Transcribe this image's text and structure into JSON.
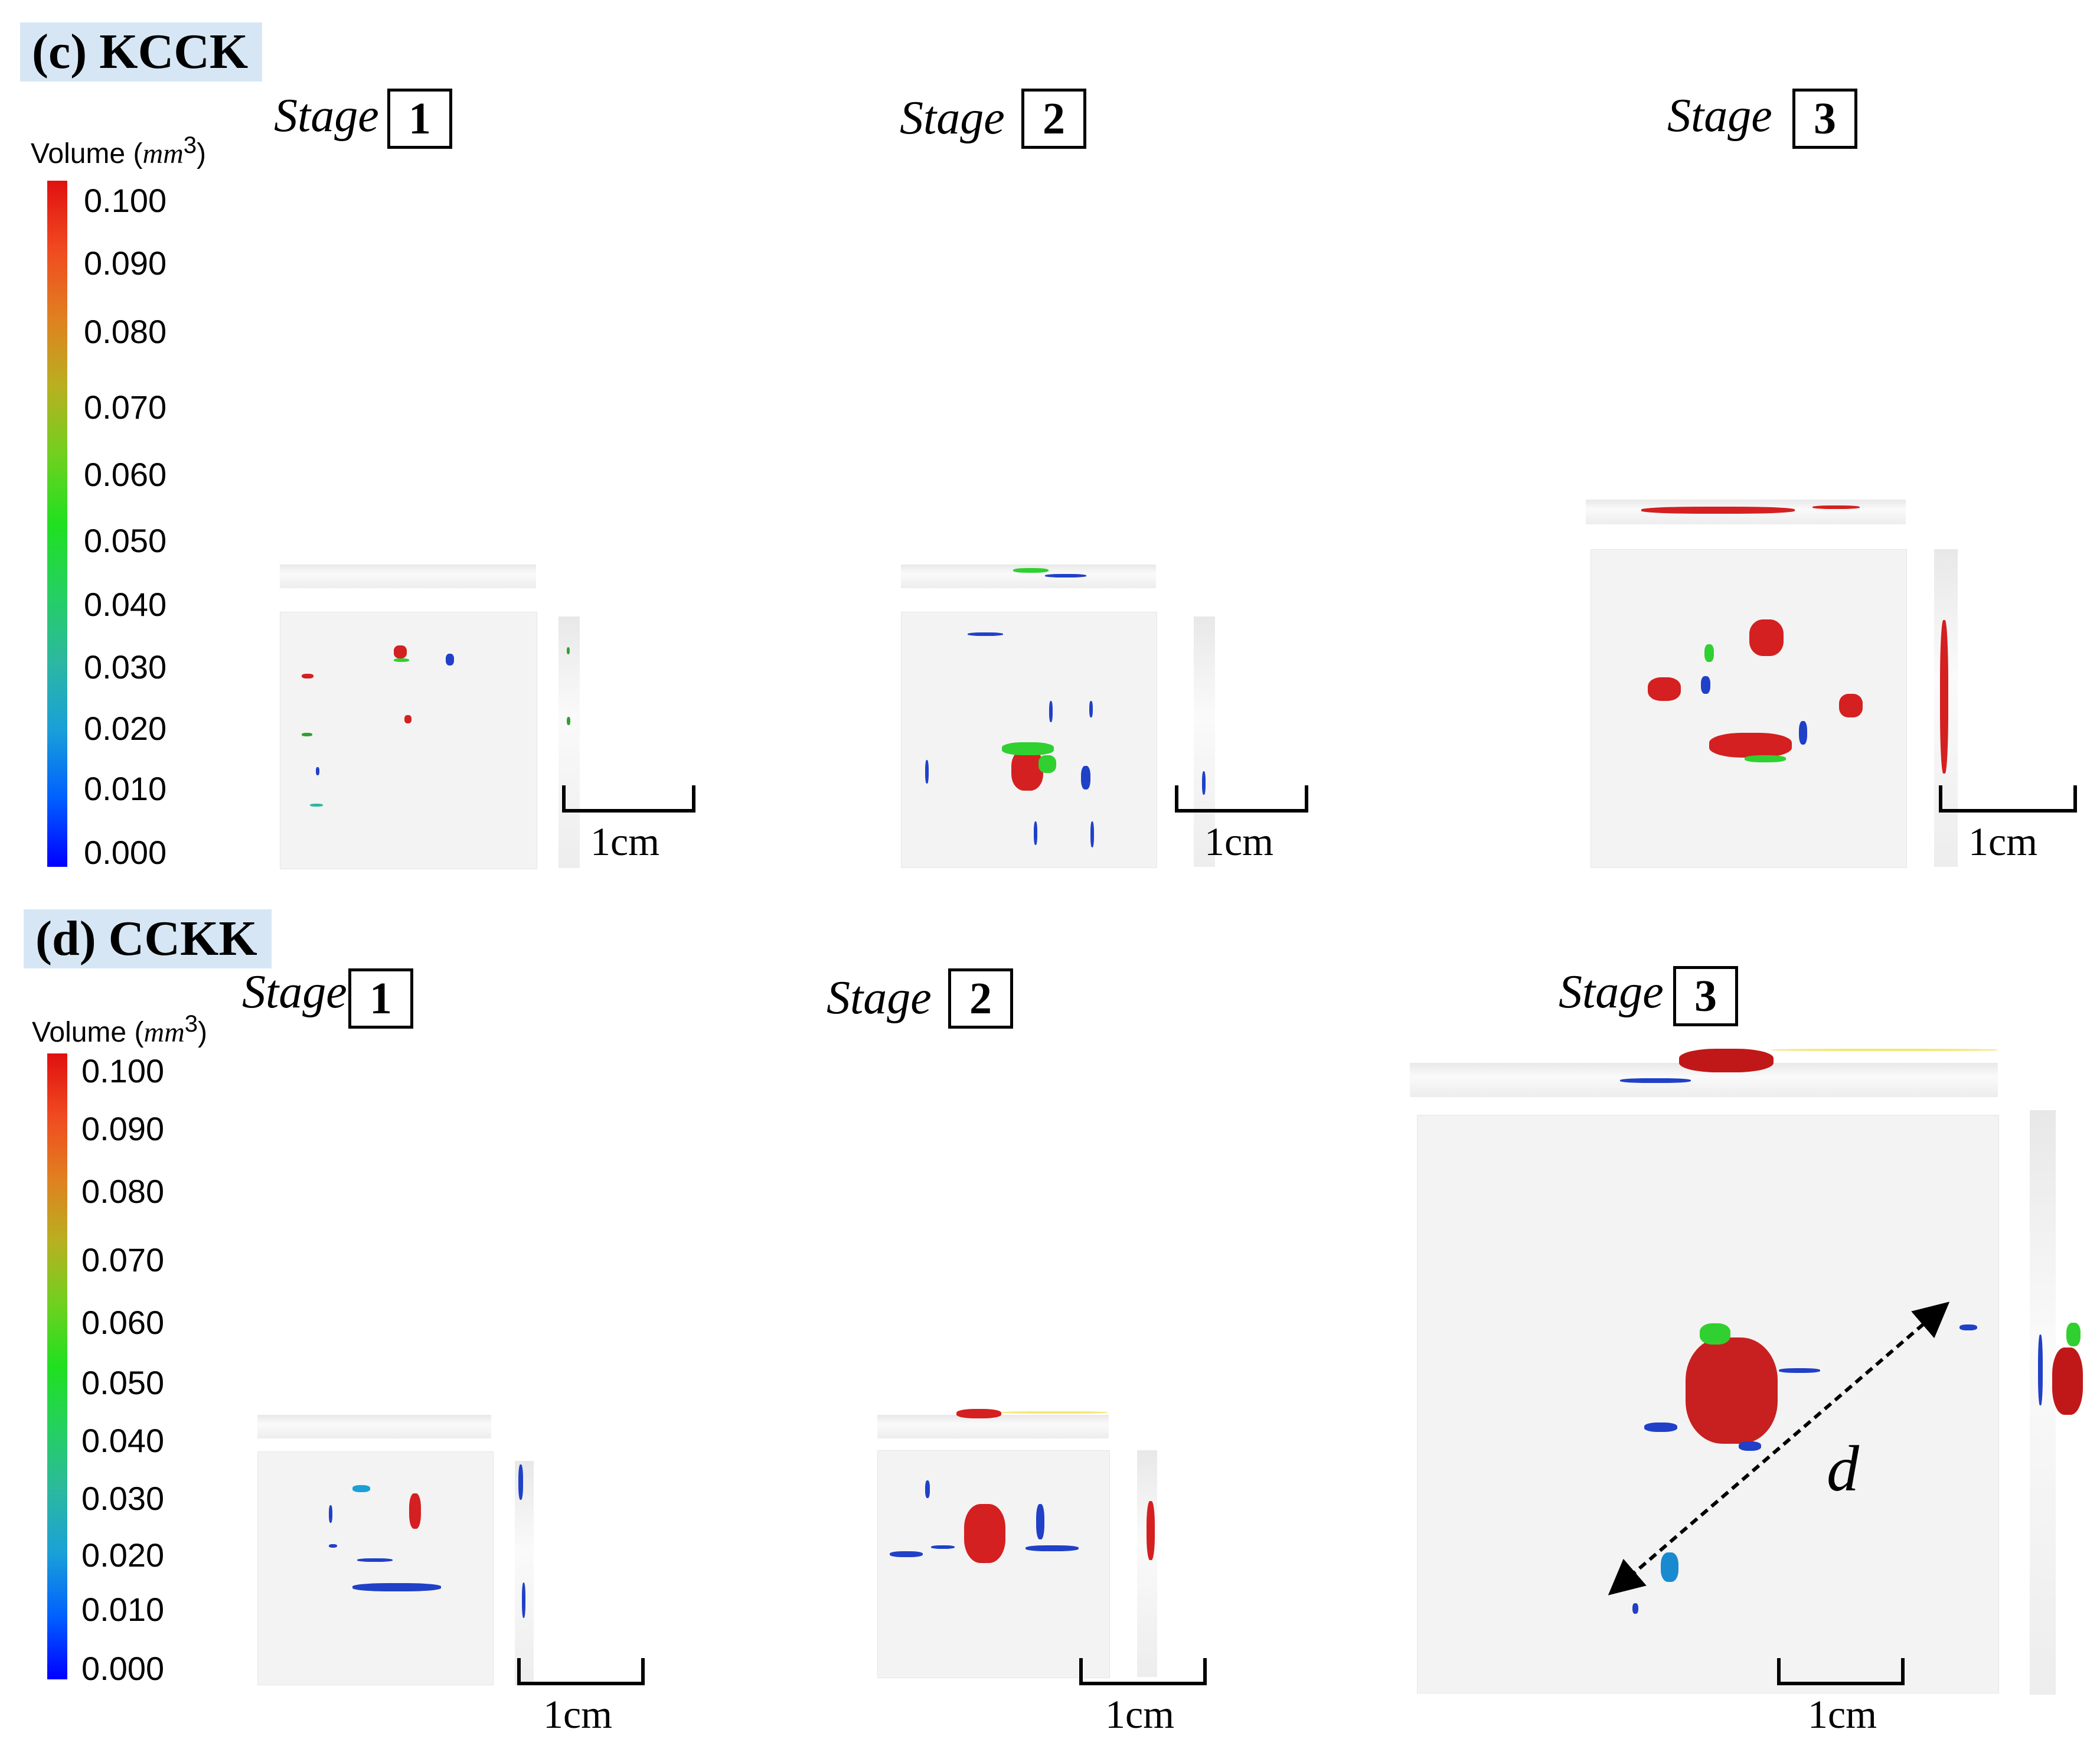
{
  "panel_c": {
    "title": "(c) KCCK",
    "colorbar": {
      "title": "Volume",
      "unit": "mm",
      "unit_exp": "3",
      "ticks": [
        "0.100",
        "0.090",
        "0.080",
        "0.070",
        "0.060",
        "0.050",
        "0.040",
        "0.030",
        "0.020",
        "0.010",
        "0.000"
      ]
    },
    "stages": [
      {
        "word": "Stage",
        "number": "1",
        "scale_label": "1cm"
      },
      {
        "word": "Stage",
        "number": "2",
        "scale_label": "1cm"
      },
      {
        "word": "Stage",
        "number": "3",
        "scale_label": "1cm"
      }
    ]
  },
  "panel_d": {
    "title": "(d) CCKK",
    "colorbar": {
      "title": "Volume",
      "unit": "mm",
      "unit_exp": "3",
      "ticks": [
        "0.100",
        "0.090",
        "0.080",
        "0.070",
        "0.060",
        "0.050",
        "0.040",
        "0.030",
        "0.020",
        "0.010",
        "0.000"
      ]
    },
    "stages": [
      {
        "word": "Stage",
        "number": "1",
        "scale_label": "1cm"
      },
      {
        "word": "Stage",
        "number": "2",
        "scale_label": "1cm"
      },
      {
        "word": "Stage",
        "number": "3",
        "scale_label": "1cm"
      }
    ],
    "distance_label": "d"
  },
  "colors": {
    "high_volume": "#d42020",
    "mid_volume": "#30d030",
    "low_volume": "#2040c8",
    "title_bg": "#d6e6f4"
  }
}
